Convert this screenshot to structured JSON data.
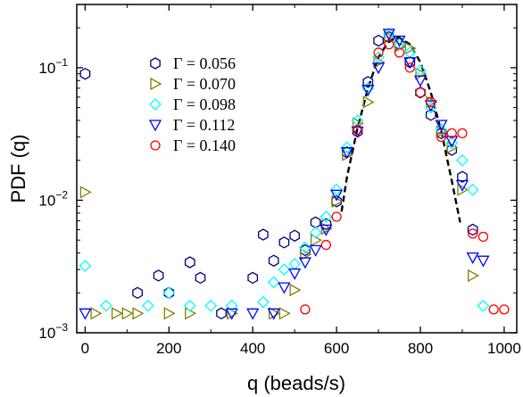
{
  "chart_data": {
    "type": "scatter",
    "xlabel": "q (beads/s)",
    "ylabel": "PDF (q)",
    "xlim": [
      -20,
      1030
    ],
    "ylim": [
      0.001,
      0.3
    ],
    "yscale": "log",
    "xticks": [
      0,
      200,
      400,
      600,
      800,
      1000
    ],
    "xtick_labels": [
      "0",
      "200",
      "400",
      "600",
      "800",
      "1000"
    ],
    "yticks": [
      0.001,
      0.01,
      0.1
    ],
    "grid": false,
    "legend_position": "top-left",
    "series": [
      {
        "name": "Γ = 0.056",
        "marker": "hexagon",
        "color": "#000080",
        "x": [
          0,
          125,
          175,
          200,
          250,
          275,
          325,
          400,
          425,
          450,
          475,
          500,
          525,
          550,
          575,
          600,
          625,
          650,
          675,
          700,
          725,
          750,
          775,
          800,
          825,
          850,
          875,
          900,
          925
        ],
        "y": [
          0.09,
          0.002,
          0.0027,
          0.002,
          0.0034,
          0.0026,
          0.0014,
          0.0026,
          0.0055,
          0.0035,
          0.0048,
          0.0054,
          0.0042,
          0.0068,
          0.0066,
          0.0098,
          0.023,
          0.033,
          0.078,
          0.16,
          0.17,
          0.15,
          0.11,
          0.065,
          0.044,
          0.032,
          0.024,
          0.015,
          0.006
        ]
      },
      {
        "name": "Γ = 0.070",
        "marker": "triangle-right",
        "color": "#808000",
        "x": [
          0,
          25,
          75,
          100,
          125,
          200,
          250,
          350,
          450,
          475,
          500,
          525,
          550,
          575,
          600,
          625,
          650,
          675,
          700,
          725,
          750,
          775,
          800,
          825,
          850,
          875,
          900,
          925
        ],
        "y": [
          0.0115,
          0.0014,
          0.0014,
          0.0014,
          0.0014,
          0.0014,
          0.0014,
          0.0014,
          0.0014,
          0.0014,
          0.0021,
          0.0039,
          0.005,
          0.0061,
          0.0098,
          0.022,
          0.038,
          0.055,
          0.11,
          0.17,
          0.145,
          0.14,
          0.09,
          0.055,
          0.033,
          0.025,
          0.012,
          0.0027
        ]
      },
      {
        "name": "Γ = 0.098",
        "marker": "diamond",
        "color": "#00ffff",
        "x": [
          0,
          50,
          150,
          200,
          250,
          300,
          350,
          425,
          450,
          475,
          500,
          525,
          550,
          575,
          600,
          625,
          650,
          675,
          700,
          725,
          750,
          775,
          800,
          825,
          850,
          875,
          900,
          925,
          950
        ],
        "y": [
          0.0032,
          0.0016,
          0.0016,
          0.002,
          0.0016,
          0.0016,
          0.0016,
          0.0017,
          0.0024,
          0.003,
          0.0033,
          0.0044,
          0.0057,
          0.0075,
          0.012,
          0.025,
          0.04,
          0.07,
          0.12,
          0.18,
          0.15,
          0.13,
          0.095,
          0.05,
          0.034,
          0.027,
          0.02,
          0.012,
          0.0016
        ]
      },
      {
        "name": "Γ = 0.112",
        "marker": "triangle-down",
        "color": "#0000ff",
        "x": [
          0,
          350,
          400,
          450,
          475,
          500,
          525,
          550,
          575,
          600,
          625,
          650,
          675,
          700,
          725,
          750,
          775,
          800,
          825,
          850,
          875,
          900,
          925,
          950
        ],
        "y": [
          0.0014,
          0.0014,
          0.0014,
          0.0014,
          0.0022,
          0.0028,
          0.0034,
          0.0042,
          0.006,
          0.011,
          0.023,
          0.033,
          0.068,
          0.1,
          0.18,
          0.16,
          0.11,
          0.08,
          0.052,
          0.037,
          0.028,
          0.013,
          0.0037,
          0.0035
        ]
      },
      {
        "name": "Γ = 0.140",
        "marker": "circle",
        "color": "#ff0000",
        "x": [
          525,
          575,
          600,
          650,
          700,
          725,
          750,
          775,
          800,
          825,
          850,
          875,
          900,
          925,
          950,
          975,
          1000
        ],
        "y": [
          0.0015,
          0.0046,
          0.0075,
          0.034,
          0.13,
          0.15,
          0.13,
          0.1,
          0.065,
          0.055,
          0.03,
          0.032,
          0.032,
          0.0056,
          0.0053,
          0.0015,
          0.0015
        ]
      }
    ],
    "fit_curve": {
      "style": "dashed",
      "color": "#000000",
      "x": [
        612,
        625,
        650,
        675,
        700,
        725,
        740,
        750,
        775,
        800,
        825,
        850,
        875,
        895
      ],
      "y": [
        0.0082,
        0.015,
        0.035,
        0.07,
        0.12,
        0.16,
        0.168,
        0.168,
        0.15,
        0.11,
        0.065,
        0.033,
        0.014,
        0.0068
      ]
    }
  }
}
